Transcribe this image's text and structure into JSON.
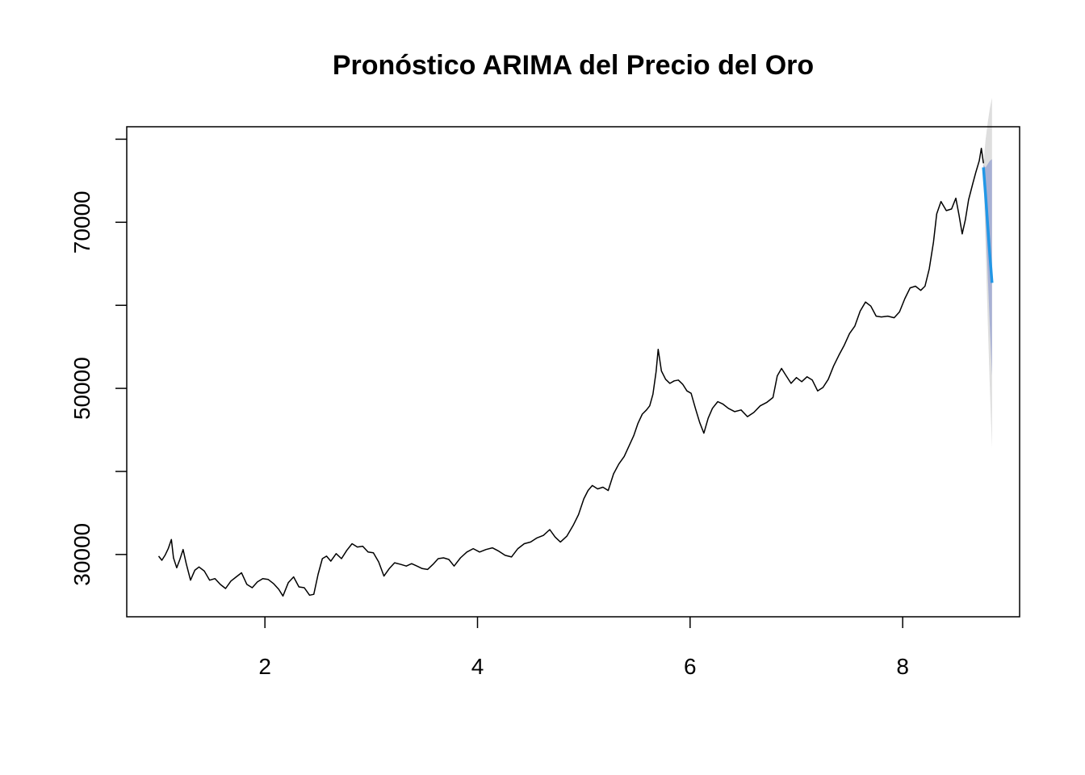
{
  "chart_data": {
    "type": "line",
    "title": "Pronóstico ARIMA del Precio del Oro",
    "xlabel": "",
    "ylabel": "",
    "xlim": [
      0.7,
      9.1
    ],
    "ylim": [
      22500,
      81500
    ],
    "x_ticks": [
      2,
      4,
      6,
      8
    ],
    "x_tick_labels": [
      "2",
      "4",
      "6",
      "8"
    ],
    "y_ticks": [
      30000,
      40000,
      50000,
      60000,
      70000,
      80000
    ],
    "y_tick_labels": [
      "30000",
      "",
      "50000",
      "",
      "70000",
      ""
    ],
    "grid": false,
    "legend": "none",
    "colors": {
      "history": "#000000",
      "forecast": "#2297E6",
      "band80": "#A8B1D4",
      "band95": "#DEDEDE",
      "frame": "#000000"
    },
    "series": [
      {
        "role": "history",
        "points": [
          [
            1.0,
            29800
          ],
          [
            1.03,
            29300
          ],
          [
            1.06,
            29900
          ],
          [
            1.09,
            30700
          ],
          [
            1.12,
            31800
          ],
          [
            1.14,
            29600
          ],
          [
            1.17,
            28400
          ],
          [
            1.2,
            29400
          ],
          [
            1.23,
            30600
          ],
          [
            1.26,
            28900
          ],
          [
            1.3,
            26900
          ],
          [
            1.34,
            28100
          ],
          [
            1.38,
            28500
          ],
          [
            1.43,
            28000
          ],
          [
            1.48,
            26900
          ],
          [
            1.53,
            27100
          ],
          [
            1.58,
            26400
          ],
          [
            1.63,
            25900
          ],
          [
            1.68,
            26800
          ],
          [
            1.73,
            27300
          ],
          [
            1.78,
            27800
          ],
          [
            1.83,
            26400
          ],
          [
            1.88,
            26000
          ],
          [
            1.93,
            26700
          ],
          [
            1.98,
            27100
          ],
          [
            2.03,
            27000
          ],
          [
            2.08,
            26500
          ],
          [
            2.13,
            25800
          ],
          [
            2.17,
            25000
          ],
          [
            2.22,
            26600
          ],
          [
            2.27,
            27300
          ],
          [
            2.32,
            26100
          ],
          [
            2.37,
            26000
          ],
          [
            2.42,
            25100
          ],
          [
            2.46,
            25200
          ],
          [
            2.5,
            27600
          ],
          [
            2.54,
            29500
          ],
          [
            2.58,
            29800
          ],
          [
            2.62,
            29200
          ],
          [
            2.67,
            30100
          ],
          [
            2.72,
            29500
          ],
          [
            2.77,
            30500
          ],
          [
            2.82,
            31300
          ],
          [
            2.87,
            30900
          ],
          [
            2.92,
            31000
          ],
          [
            2.97,
            30300
          ],
          [
            3.02,
            30200
          ],
          [
            3.07,
            29100
          ],
          [
            3.12,
            27400
          ],
          [
            3.17,
            28300
          ],
          [
            3.22,
            29000
          ],
          [
            3.28,
            28800
          ],
          [
            3.33,
            28600
          ],
          [
            3.38,
            28900
          ],
          [
            3.43,
            28600
          ],
          [
            3.48,
            28300
          ],
          [
            3.53,
            28200
          ],
          [
            3.58,
            28800
          ],
          [
            3.63,
            29500
          ],
          [
            3.68,
            29600
          ],
          [
            3.73,
            29400
          ],
          [
            3.78,
            28600
          ],
          [
            3.84,
            29600
          ],
          [
            3.9,
            30300
          ],
          [
            3.96,
            30700
          ],
          [
            4.02,
            30300
          ],
          [
            4.08,
            30600
          ],
          [
            4.14,
            30800
          ],
          [
            4.2,
            30400
          ],
          [
            4.26,
            29900
          ],
          [
            4.32,
            29700
          ],
          [
            4.38,
            30700
          ],
          [
            4.44,
            31300
          ],
          [
            4.5,
            31500
          ],
          [
            4.56,
            32000
          ],
          [
            4.62,
            32300
          ],
          [
            4.68,
            33000
          ],
          [
            4.73,
            32100
          ],
          [
            4.78,
            31500
          ],
          [
            4.84,
            32200
          ],
          [
            4.9,
            33500
          ],
          [
            4.95,
            34800
          ],
          [
            5.0,
            36700
          ],
          [
            5.04,
            37700
          ],
          [
            5.08,
            38300
          ],
          [
            5.13,
            37900
          ],
          [
            5.18,
            38100
          ],
          [
            5.23,
            37700
          ],
          [
            5.28,
            39700
          ],
          [
            5.33,
            40900
          ],
          [
            5.38,
            41800
          ],
          [
            5.43,
            43200
          ],
          [
            5.47,
            44300
          ],
          [
            5.51,
            45800
          ],
          [
            5.55,
            46900
          ],
          [
            5.59,
            47400
          ],
          [
            5.62,
            47900
          ],
          [
            5.65,
            49300
          ],
          [
            5.68,
            52000
          ],
          [
            5.7,
            54700
          ],
          [
            5.73,
            52100
          ],
          [
            5.77,
            51100
          ],
          [
            5.81,
            50600
          ],
          [
            5.85,
            50900
          ],
          [
            5.89,
            51000
          ],
          [
            5.93,
            50500
          ],
          [
            5.97,
            49700
          ],
          [
            6.01,
            49400
          ],
          [
            6.05,
            47600
          ],
          [
            6.09,
            45900
          ],
          [
            6.13,
            44600
          ],
          [
            6.17,
            46400
          ],
          [
            6.21,
            47600
          ],
          [
            6.26,
            48400
          ],
          [
            6.31,
            48100
          ],
          [
            6.36,
            47600
          ],
          [
            6.42,
            47200
          ],
          [
            6.48,
            47400
          ],
          [
            6.54,
            46600
          ],
          [
            6.6,
            47100
          ],
          [
            6.66,
            47900
          ],
          [
            6.72,
            48300
          ],
          [
            6.78,
            48900
          ],
          [
            6.82,
            51500
          ],
          [
            6.86,
            52400
          ],
          [
            6.9,
            51600
          ],
          [
            6.95,
            50600
          ],
          [
            7.0,
            51300
          ],
          [
            7.05,
            50800
          ],
          [
            7.1,
            51400
          ],
          [
            7.15,
            51000
          ],
          [
            7.2,
            49700
          ],
          [
            7.25,
            50100
          ],
          [
            7.3,
            51100
          ],
          [
            7.35,
            52700
          ],
          [
            7.4,
            54000
          ],
          [
            7.45,
            55200
          ],
          [
            7.5,
            56600
          ],
          [
            7.55,
            57500
          ],
          [
            7.6,
            59300
          ],
          [
            7.65,
            60400
          ],
          [
            7.7,
            59900
          ],
          [
            7.75,
            58700
          ],
          [
            7.8,
            58600
          ],
          [
            7.86,
            58700
          ],
          [
            7.92,
            58500
          ],
          [
            7.97,
            59200
          ],
          [
            8.02,
            60800
          ],
          [
            8.07,
            62100
          ],
          [
            8.12,
            62300
          ],
          [
            8.17,
            61800
          ],
          [
            8.21,
            62300
          ],
          [
            8.25,
            64400
          ],
          [
            8.29,
            67600
          ],
          [
            8.32,
            71000
          ],
          [
            8.36,
            72500
          ],
          [
            8.41,
            71400
          ],
          [
            8.46,
            71600
          ],
          [
            8.5,
            72900
          ],
          [
            8.53,
            70900
          ],
          [
            8.56,
            68600
          ],
          [
            8.59,
            70300
          ],
          [
            8.62,
            72700
          ],
          [
            8.66,
            74700
          ],
          [
            8.69,
            76100
          ],
          [
            8.72,
            77400
          ],
          [
            8.74,
            78900
          ],
          [
            8.76,
            77100
          ]
        ]
      },
      {
        "role": "forecast",
        "points": [
          [
            8.76,
            76600
          ],
          [
            8.78,
            73200
          ],
          [
            8.8,
            69600
          ],
          [
            8.82,
            66100
          ],
          [
            8.84,
            62700
          ]
        ]
      }
    ],
    "band95": {
      "x": [
        8.76,
        8.78,
        8.8,
        8.82,
        8.84
      ],
      "upper": [
        77100,
        80000,
        82000,
        83700,
        85000
      ],
      "lower": [
        76100,
        67000,
        58200,
        50200,
        42800
      ]
    },
    "band80": {
      "x": [
        8.76,
        8.78,
        8.8,
        8.82,
        8.84
      ],
      "upper": [
        76900,
        76600,
        77000,
        77400,
        77600
      ],
      "lower": [
        76300,
        70300,
        63800,
        57500,
        51500
      ]
    }
  }
}
